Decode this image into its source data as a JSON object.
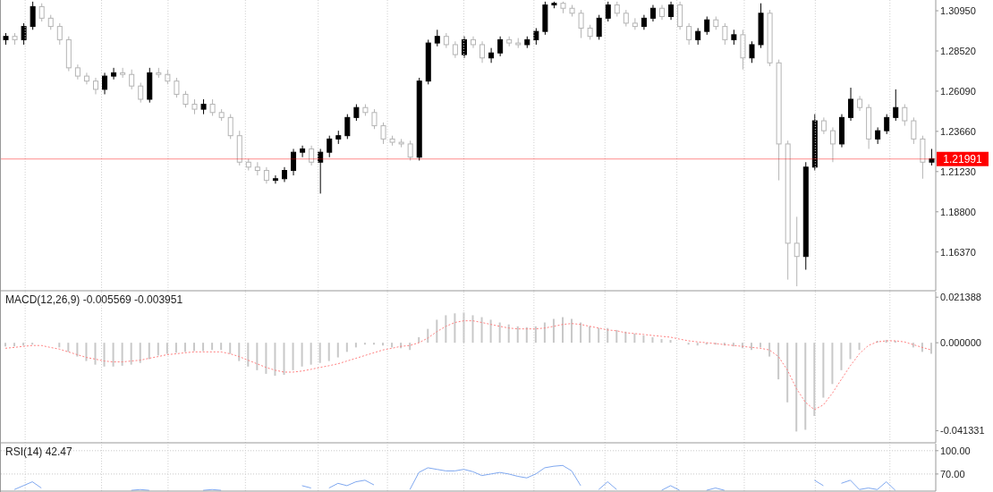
{
  "chart_data": [
    {
      "type": "candlestick",
      "categories": [
        null,
        null,
        null,
        null,
        null,
        null,
        null,
        null,
        null,
        null,
        null,
        null,
        null,
        null,
        null,
        null,
        null,
        null,
        null,
        null,
        null,
        null,
        null,
        null,
        null,
        null,
        null,
        null,
        null,
        null,
        null,
        null,
        null,
        null,
        null,
        null,
        null,
        null,
        null,
        null,
        null,
        null,
        null,
        null,
        null,
        null,
        null,
        null,
        null,
        null,
        null,
        null,
        null,
        null,
        null,
        null,
        null,
        null,
        null,
        null,
        null,
        null,
        null,
        null,
        null,
        null,
        null,
        null,
        null,
        null,
        null,
        null,
        null,
        null,
        null,
        null,
        null,
        null,
        null,
        null,
        null,
        null,
        null,
        null,
        null,
        null,
        null,
        null,
        null,
        null,
        null,
        null,
        null,
        null,
        null,
        null,
        null,
        null,
        null,
        null,
        null,
        null,
        null,
        null
      ],
      "ohlc": [
        [
          1.292,
          1.296,
          1.289,
          1.294
        ],
        [
          1.294,
          1.296,
          1.289,
          1.292
        ],
        [
          1.292,
          1.302,
          1.289,
          1.3
        ],
        [
          1.3,
          1.315,
          1.298,
          1.312
        ],
        [
          1.312,
          1.314,
          1.303,
          1.305
        ],
        [
          1.305,
          1.307,
          1.298,
          1.3
        ],
        [
          1.3,
          1.302,
          1.289,
          1.292
        ],
        [
          1.292,
          1.294,
          1.273,
          1.275
        ],
        [
          1.275,
          1.277,
          1.268,
          1.27
        ],
        [
          1.27,
          1.272,
          1.265,
          1.267
        ],
        [
          1.267,
          1.269,
          1.259,
          1.262
        ],
        [
          1.262,
          1.272,
          1.259,
          1.27
        ],
        [
          1.27,
          1.275,
          1.268,
          1.272
        ],
        [
          1.272,
          1.275,
          1.269,
          1.271
        ],
        [
          1.271,
          1.274,
          1.262,
          1.264
        ],
        [
          1.264,
          1.266,
          1.254,
          1.256
        ],
        [
          1.256,
          1.275,
          1.254,
          1.272
        ],
        [
          1.272,
          1.275,
          1.269,
          1.271
        ],
        [
          1.271,
          1.274,
          1.265,
          1.267
        ],
        [
          1.267,
          1.269,
          1.257,
          1.259
        ],
        [
          1.259,
          1.261,
          1.251,
          1.253
        ],
        [
          1.253,
          1.256,
          1.247,
          1.25
        ],
        [
          1.25,
          1.256,
          1.247,
          1.253
        ],
        [
          1.253,
          1.256,
          1.246,
          1.248
        ],
        [
          1.248,
          1.25,
          1.243,
          1.245
        ],
        [
          1.245,
          1.247,
          1.232,
          1.234
        ],
        [
          1.234,
          1.237,
          1.216,
          1.218
        ],
        [
          1.218,
          1.22,
          1.213,
          1.215
        ],
        [
          1.215,
          1.218,
          1.21,
          1.213
        ],
        [
          1.213,
          1.215,
          1.205,
          1.207
        ],
        [
          1.207,
          1.21,
          1.205,
          1.208
        ],
        [
          1.208,
          1.215,
          1.206,
          1.213
        ],
        [
          1.213,
          1.226,
          1.21,
          1.224
        ],
        [
          1.224,
          1.228,
          1.221,
          1.226
        ],
        [
          1.226,
          1.228,
          1.216,
          1.218
        ],
        [
          1.218,
          1.226,
          1.199,
          1.224
        ],
        [
          1.224,
          1.234,
          1.221,
          1.232
        ],
        [
          1.232,
          1.237,
          1.229,
          1.234
        ],
        [
          1.234,
          1.247,
          1.232,
          1.245
        ],
        [
          1.245,
          1.253,
          1.243,
          1.251
        ],
        [
          1.251,
          1.253,
          1.246,
          1.248
        ],
        [
          1.248,
          1.25,
          1.238,
          1.24
        ],
        [
          1.24,
          1.242,
          1.229,
          1.232
        ],
        [
          1.232,
          1.234,
          1.228,
          1.23
        ],
        [
          1.23,
          1.232,
          1.227,
          1.229
        ],
        [
          1.229,
          1.231,
          1.219,
          1.221
        ],
        [
          1.221,
          1.269,
          1.219,
          1.267
        ],
        [
          1.267,
          1.292,
          1.265,
          1.29
        ],
        [
          1.29,
          1.298,
          1.288,
          1.294
        ],
        [
          1.294,
          1.296,
          1.287,
          1.289
        ],
        [
          1.289,
          1.291,
          1.281,
          1.283
        ],
        [
          1.283,
          1.294,
          1.281,
          1.292
        ],
        [
          1.292,
          1.294,
          1.287,
          1.289
        ],
        [
          1.289,
          1.291,
          1.278,
          1.281
        ],
        [
          1.281,
          1.287,
          1.278,
          1.284
        ],
        [
          1.284,
          1.294,
          1.282,
          1.292
        ],
        [
          1.292,
          1.294,
          1.288,
          1.29
        ],
        [
          1.29,
          1.293,
          1.287,
          1.289
        ],
        [
          1.289,
          1.294,
          1.287,
          1.292
        ],
        [
          1.292,
          1.299,
          1.289,
          1.297
        ],
        [
          1.297,
          1.315,
          1.295,
          1.313
        ],
        [
          1.313,
          1.315,
          1.311,
          1.314
        ],
        [
          1.314,
          1.315,
          1.308,
          1.311
        ],
        [
          1.311,
          1.313,
          1.306,
          1.308
        ],
        [
          1.308,
          1.31,
          1.293,
          1.299
        ],
        [
          1.299,
          1.301,
          1.292,
          1.294
        ],
        [
          1.294,
          1.307,
          1.292,
          1.305
        ],
        [
          1.305,
          1.315,
          1.303,
          1.313
        ],
        [
          1.313,
          1.315,
          1.306,
          1.308
        ],
        [
          1.308,
          1.31,
          1.3,
          1.302
        ],
        [
          1.302,
          1.305,
          1.298,
          1.3
        ],
        [
          1.3,
          1.307,
          1.298,
          1.305
        ],
        [
          1.305,
          1.313,
          1.303,
          1.311
        ],
        [
          1.311,
          1.313,
          1.304,
          1.306
        ],
        [
          1.306,
          1.315,
          1.304,
          1.313
        ],
        [
          1.313,
          1.315,
          1.298,
          1.3
        ],
        [
          1.3,
          1.302,
          1.289,
          1.292
        ],
        [
          1.292,
          1.299,
          1.289,
          1.297
        ],
        [
          1.297,
          1.306,
          1.295,
          1.304
        ],
        [
          1.304,
          1.306,
          1.298,
          1.3
        ],
        [
          1.3,
          1.302,
          1.289,
          1.292
        ],
        [
          1.292,
          1.298,
          1.289,
          1.295
        ],
        [
          1.295,
          1.298,
          1.274,
          1.281
        ],
        [
          1.281,
          1.291,
          1.278,
          1.289
        ],
        [
          1.289,
          1.314,
          1.287,
          1.308
        ],
        [
          1.308,
          1.31,
          1.276,
          1.278
        ],
        [
          1.278,
          1.28,
          1.207,
          1.229
        ],
        [
          1.229,
          1.231,
          1.147,
          1.169
        ],
        [
          1.169,
          1.185,
          1.143,
          1.161
        ],
        [
          1.161,
          1.218,
          1.153,
          1.215
        ],
        [
          1.215,
          1.247,
          1.213,
          1.243
        ],
        [
          1.243,
          1.245,
          1.235,
          1.237
        ],
        [
          1.237,
          1.239,
          1.218,
          1.229
        ],
        [
          1.229,
          1.247,
          1.227,
          1.245
        ],
        [
          1.245,
          1.263,
          1.243,
          1.256
        ],
        [
          1.256,
          1.258,
          1.249,
          1.251
        ],
        [
          1.251,
          1.253,
          1.226,
          1.232
        ],
        [
          1.232,
          1.239,
          1.229,
          1.237
        ],
        [
          1.237,
          1.247,
          1.235,
          1.245
        ],
        [
          1.245,
          1.262,
          1.243,
          1.251
        ],
        [
          1.251,
          1.253,
          1.24,
          1.243
        ],
        [
          1.243,
          1.245,
          1.229,
          1.232
        ],
        [
          1.232,
          1.234,
          1.208,
          1.218
        ],
        [
          1.218,
          1.226,
          1.216,
          1.22
        ]
      ],
      "colors": [
        "#000000",
        "#b4b4b4",
        "#000000",
        "#000000",
        "#b4b4b4",
        "#b4b4b4",
        "#b4b4b4",
        "#b4b4b4",
        "#b4b4b4",
        "#b4b4b4",
        "#b4b4b4",
        "#000000",
        "#000000",
        "#b4b4b4",
        "#b4b4b4",
        "#b4b4b4",
        "#000000",
        "#b4b4b4",
        "#b4b4b4",
        "#b4b4b4",
        "#b4b4b4",
        "#b4b4b4",
        "#000000",
        "#b4b4b4",
        "#b4b4b4",
        "#b4b4b4",
        "#b4b4b4",
        "#b4b4b4",
        "#b4b4b4",
        "#b4b4b4",
        "#000000",
        "#000000",
        "#000000",
        "#000000",
        "#b4b4b4",
        "#000000",
        "#000000",
        "#000000",
        "#000000",
        "#000000",
        "#b4b4b4",
        "#b4b4b4",
        "#b4b4b4",
        "#b4b4b4",
        "#b4b4b4",
        "#b4b4b4",
        "#000000",
        "#000000",
        "#000000",
        "#b4b4b4",
        "#b4b4b4",
        "#000000",
        "#b4b4b4",
        "#b4b4b4",
        "#000000",
        "#000000",
        "#b4b4b4",
        "#b4b4b4",
        "#000000",
        "#000000",
        "#000000",
        "#000000",
        "#b4b4b4",
        "#b4b4b4",
        "#b4b4b4",
        "#b4b4b4",
        "#000000",
        "#000000",
        "#b4b4b4",
        "#b4b4b4",
        "#b4b4b4",
        "#000000",
        "#000000",
        "#b4b4b4",
        "#000000",
        "#b4b4b4",
        "#b4b4b4",
        "#000000",
        "#000000",
        "#b4b4b4",
        "#b4b4b4",
        "#000000",
        "#b4b4b4",
        "#000000",
        "#000000",
        "#b4b4b4",
        "#b4b4b4",
        "#b4b4b4",
        "#b4b4b4",
        "#000000",
        "#000000",
        "#b4b4b4",
        "#b4b4b4",
        "#000000",
        "#000000",
        "#b4b4b4",
        "#b4b4b4",
        "#000000",
        "#000000",
        "#000000",
        "#b4b4b4",
        "#b4b4b4",
        "#b4b4b4",
        "#000000"
      ],
      "ylim": [
        1.1403,
        1.316
      ],
      "yticks": [
        {
          "value": 1.3095,
          "label": "1.30950"
        },
        {
          "value": 1.2852,
          "label": "1.28520"
        },
        {
          "value": 1.2609,
          "label": "1.26090"
        },
        {
          "value": 1.2366,
          "label": "1.23660"
        },
        {
          "value": 1.2123,
          "label": "1.21230"
        },
        {
          "value": 1.188,
          "label": "1.18800"
        },
        {
          "value": 1.1637,
          "label": "1.16370"
        }
      ],
      "ref_lines": [
        {
          "axis": "y",
          "value": 1.21991,
          "label": "1.21991",
          "color": "#ff0000"
        }
      ],
      "tick_labels": "y"
    },
    {
      "type": "bar",
      "title": "MACD(12,26,9) -0.005569 -0.003951",
      "categories": [
        null,
        null,
        null,
        null,
        null,
        null,
        null,
        null,
        null,
        null,
        null,
        null,
        null,
        null,
        null,
        null,
        null,
        null,
        null,
        null,
        null,
        null,
        null,
        null,
        null,
        null,
        null,
        null,
        null,
        null,
        null,
        null,
        null,
        null,
        null,
        null,
        null,
        null,
        null,
        null,
        null,
        null,
        null,
        null,
        null,
        null,
        null,
        null,
        null,
        null,
        null,
        null,
        null,
        null,
        null,
        null,
        null,
        null,
        null,
        null,
        null,
        null,
        null,
        null,
        null,
        null,
        null,
        null,
        null,
        null,
        null,
        null,
        null,
        null,
        null,
        null,
        null,
        null,
        null,
        null,
        null,
        null,
        null,
        null,
        null,
        null,
        null,
        null,
        null,
        null,
        null,
        null,
        null,
        null,
        null,
        null,
        null,
        null,
        null,
        null,
        null,
        null,
        null,
        null
      ],
      "series": [
        {
          "type": "bar",
          "color": "#c8c8c8",
          "values": [
            -0.0017,
            -0.0017,
            -0.0013,
            -0.0009,
            null,
            null,
            -0.0022,
            -0.0043,
            -0.0065,
            -0.0086,
            -0.0103,
            -0.0112,
            -0.0112,
            -0.0108,
            -0.0103,
            -0.0095,
            -0.0077,
            -0.006,
            -0.0052,
            -0.0047,
            -0.0043,
            -0.0039,
            -0.0039,
            -0.0034,
            -0.0034,
            -0.0052,
            -0.0086,
            -0.0112,
            -0.0129,
            -0.0146,
            -0.0155,
            -0.0151,
            -0.0129,
            -0.0112,
            -0.0103,
            -0.0095,
            -0.0086,
            -0.0069,
            -0.0043,
            -0.0022,
            -0.0009,
            -0.0009,
            -0.0013,
            -0.0022,
            -0.0026,
            -0.0034,
            0.0026,
            0.0065,
            0.0108,
            0.0129,
            0.0138,
            0.0142,
            0.0129,
            0.012,
            0.0108,
            0.0095,
            0.0086,
            0.0077,
            0.0073,
            0.0077,
            0.0095,
            0.0112,
            0.012,
            0.0112,
            0.0095,
            0.0077,
            0.0069,
            0.0069,
            0.006,
            0.0052,
            0.0043,
            0.0034,
            0.0026,
            0.0017,
            0.0013,
            0,
            -0.0009,
            -0.0013,
            -0.0009,
            -0.0009,
            -0.0013,
            -0.0017,
            -0.0026,
            -0.0034,
            -0.0022,
            -0.0065,
            -0.0172,
            -0.028,
            -0.0417,
            -0.0409,
            -0.0344,
            -0.0258,
            -0.0194,
            -0.0129,
            -0.0077,
            -0.0034,
            0,
            0.0009,
            0.0013,
            0.0009,
            0,
            -0.0022,
            -0.0043,
            -0.0052
          ]
        },
        {
          "type": "line",
          "color": "#ff8080",
          "values": [
            -0.0026,
            -0.0022,
            -0.0017,
            -0.0013,
            -0.0013,
            -0.0022,
            -0.003,
            -0.0043,
            -0.0056,
            -0.0069,
            -0.0077,
            -0.0086,
            -0.009,
            -0.009,
            -0.0086,
            -0.0082,
            -0.0073,
            -0.0065,
            -0.0056,
            -0.0052,
            -0.0047,
            -0.0043,
            -0.0043,
            -0.0043,
            -0.0043,
            -0.0052,
            -0.0065,
            -0.0082,
            -0.0099,
            -0.0116,
            -0.0129,
            -0.0138,
            -0.0138,
            -0.0133,
            -0.0125,
            -0.0116,
            -0.0108,
            -0.0099,
            -0.0086,
            -0.0073,
            -0.006,
            -0.0047,
            -0.0034,
            -0.0026,
            -0.0017,
            -0.0013,
            0,
            0.0022,
            0.0052,
            0.0077,
            0.0095,
            0.0103,
            0.0103,
            0.0095,
            0.0086,
            0.0077,
            0.0069,
            0.0065,
            0.0065,
            0.0065,
            0.0069,
            0.0077,
            0.0086,
            0.009,
            0.0086,
            0.0077,
            0.0069,
            0.006,
            0.0056,
            0.0047,
            0.0043,
            0.0039,
            0.0034,
            0.003,
            0.0026,
            0.0017,
            0.0009,
            0.0004,
            0,
            -0.0004,
            -0.0009,
            -0.0013,
            -0.0017,
            -0.0022,
            -0.0026,
            -0.0034,
            -0.0065,
            -0.0129,
            -0.0215,
            -0.028,
            -0.0314,
            -0.0292,
            -0.0237,
            -0.0172,
            -0.0108,
            -0.0052,
            -0.0013,
            0.0004,
            0.0009,
            0.0009,
            0.0004,
            -0.0009,
            -0.0022,
            -0.0034
          ]
        }
      ],
      "line_style": "dotted",
      "marker": "none",
      "ylim": [
        -0.047,
        0.024
      ],
      "yticks": [
        {
          "value": 0.021388,
          "label": "0.021388"
        },
        {
          "value": 0,
          "label": "0.000000"
        },
        {
          "value": -0.041331,
          "label": "-0.041331"
        }
      ],
      "tick_labels": "y"
    },
    {
      "type": "line",
      "title": "RSI(14) 42.47",
      "categories": [
        null,
        null,
        null,
        null,
        null,
        null,
        null,
        null,
        null,
        null,
        null,
        null,
        null,
        null,
        null,
        null,
        null,
        null,
        null,
        null,
        null,
        null,
        null,
        null,
        null,
        null,
        null,
        null,
        null,
        null,
        null,
        null,
        null,
        null,
        null,
        null,
        null,
        null,
        null,
        null,
        null,
        null,
        null,
        null,
        null,
        null,
        null,
        null,
        null,
        null,
        null,
        null,
        null,
        null,
        null,
        null,
        null,
        null,
        null,
        null,
        null,
        null,
        null,
        null,
        null,
        null,
        null,
        null,
        null,
        null,
        null,
        null,
        null,
        null,
        null,
        null,
        null,
        null,
        null,
        null,
        null,
        null,
        null,
        null,
        null,
        null,
        null,
        null,
        null,
        null,
        null,
        null,
        null,
        null,
        null,
        null,
        null,
        null,
        null,
        null,
        null,
        null,
        null,
        null
      ],
      "series": [
        {
          "color": "#7fa8f0",
          "values": [
            null,
            50,
            55,
            60,
            52,
            null,
            null,
            null,
            null,
            null,
            null,
            null,
            null,
            null,
            49,
            50,
            49,
            null,
            null,
            null,
            null,
            null,
            49,
            50,
            49,
            null,
            null,
            null,
            null,
            null,
            null,
            null,
            null,
            55,
            52,
            null,
            52,
            58,
            55,
            60,
            62,
            56,
            null,
            null,
            null,
            50,
            72,
            78,
            76,
            74,
            74,
            76,
            73,
            68,
            70,
            72,
            70,
            67,
            65,
            70,
            78,
            80,
            81,
            74,
            55,
            null,
            50,
            60,
            50,
            null,
            null,
            null,
            null,
            49,
            55,
            49,
            null,
            null,
            49,
            52,
            49,
            null,
            null,
            null,
            null,
            null,
            null,
            null,
            null,
            null,
            62,
            55,
            null,
            58,
            62,
            50,
            52,
            50,
            60,
            49,
            null,
            null,
            null,
            null
          ]
        }
      ],
      "marker": "none",
      "ylim": [
        48,
        109
      ],
      "yticks": [
        {
          "value": 100,
          "label": "100.00"
        },
        {
          "value": 70,
          "label": "70.00"
        }
      ],
      "grid": "y",
      "tick_labels": "y"
    }
  ]
}
